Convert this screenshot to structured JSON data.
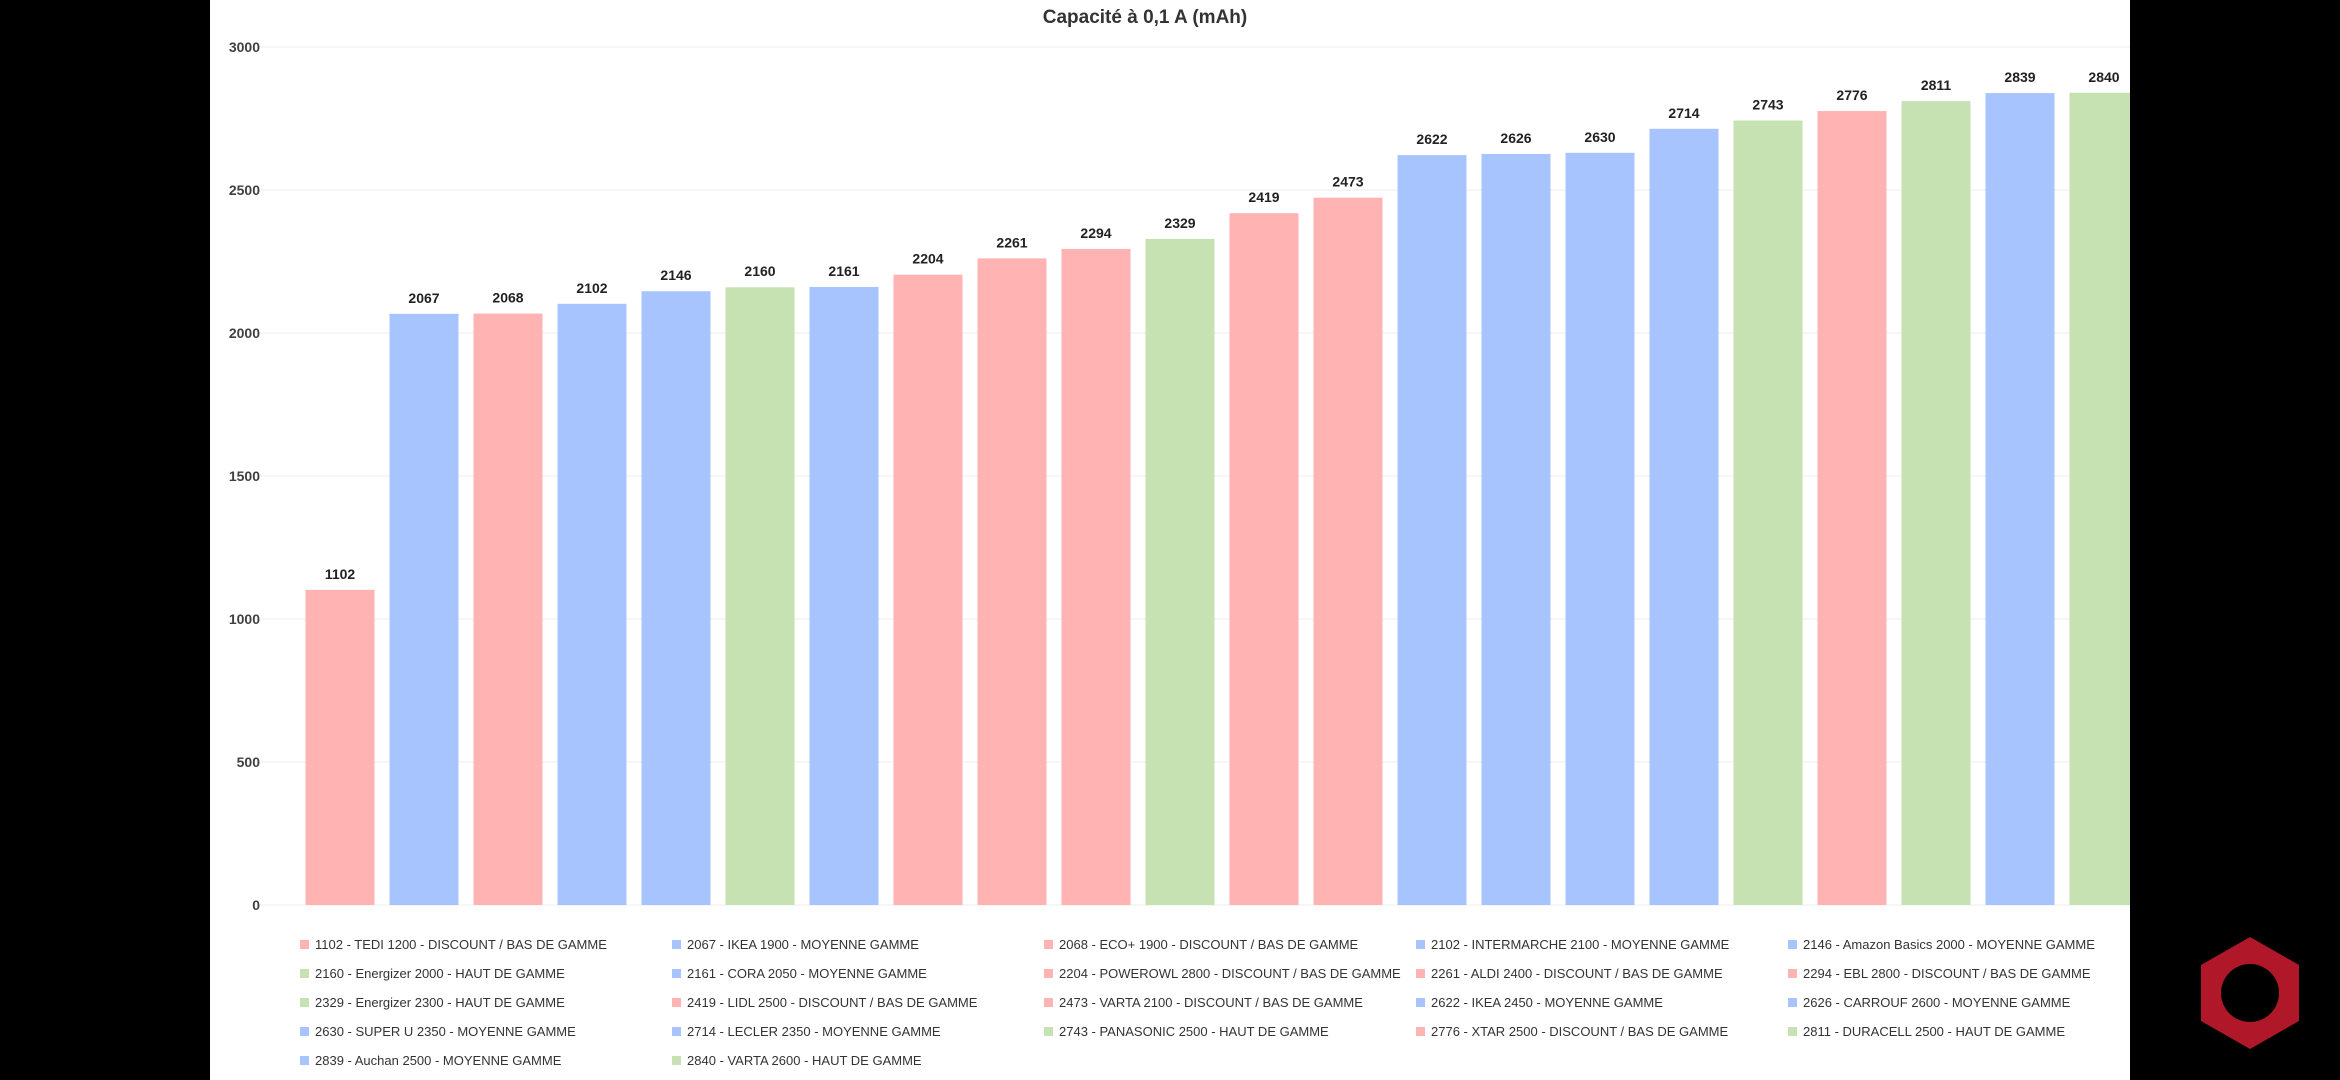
{
  "colors": {
    "discount": "#ffb3b3",
    "moyenne": "#a8c4ff",
    "haut": "#c6e2b3",
    "logo": "#b0182a"
  },
  "chart_data": {
    "type": "bar",
    "title": "Capacité à 0,1 A (mAh)",
    "ylim": [
      0,
      3000
    ],
    "yticks": [
      "0",
      "500",
      "1000",
      "1500",
      "2000",
      "2500",
      "3000"
    ],
    "grid": true,
    "legend_position": "bottom",
    "values": [
      1102,
      2067,
      2068,
      2102,
      2146,
      2160,
      2161,
      2204,
      2261,
      2294,
      2329,
      2419,
      2473,
      2622,
      2626,
      2630,
      2714,
      2743,
      2776,
      2811,
      2839,
      2840
    ],
    "data_labels": [
      "1102",
      "2067",
      "2068",
      "2102",
      "2146",
      "2160",
      "2161",
      "2204",
      "2261",
      "2294",
      "2329",
      "2419",
      "2473",
      "2622",
      "2626",
      "2630",
      "2714",
      "2743",
      "2776",
      "2811",
      "2839",
      "2840"
    ],
    "segments": [
      "discount",
      "moyenne",
      "discount",
      "moyenne",
      "moyenne",
      "haut",
      "moyenne",
      "discount",
      "discount",
      "discount",
      "haut",
      "discount",
      "discount",
      "moyenne",
      "moyenne",
      "moyenne",
      "moyenne",
      "haut",
      "discount",
      "haut",
      "moyenne",
      "haut"
    ],
    "legend": [
      "1102 - TEDI 1200 - DISCOUNT / BAS DE GAMME",
      "2067 - IKEA 1900 - MOYENNE GAMME",
      "2068 - ECO+ 1900 - DISCOUNT / BAS DE GAMME",
      "2102 - INTERMARCHE 2100 - MOYENNE GAMME",
      "2146 - Amazon Basics 2000 - MOYENNE GAMME",
      "2160 - Energizer 2000 - HAUT DE GAMME",
      "2161 - CORA  2050 - MOYENNE GAMME",
      "2204 - POWEROWL 2800 - DISCOUNT / BAS DE GAMME",
      "2261 - ALDI 2400 - DISCOUNT / BAS DE GAMME",
      "2294 - EBL 2800 - DISCOUNT / BAS DE GAMME",
      "2329 - Energizer 2300 - HAUT DE GAMME",
      "2419 - LIDL 2500 - DISCOUNT / BAS DE GAMME",
      "2473 - VARTA 2100 - DISCOUNT / BAS DE GAMME",
      "2622 - IKEA 2450 - MOYENNE GAMME",
      "2626 - CARROUF 2600 - MOYENNE GAMME",
      "2630 - SUPER U 2350 - MOYENNE GAMME",
      "2714 - LECLER 2350 - MOYENNE GAMME",
      "2743 - PANASONIC 2500 - HAUT DE GAMME",
      "2776 - XTAR 2500 - DISCOUNT / BAS DE GAMME",
      "2811 - DURACELL 2500 - HAUT DE GAMME",
      "2839 - Auchan 2500 - MOYENNE GAMME",
      "2840 - VARTA 2600 - HAUT DE GAMME"
    ]
  }
}
